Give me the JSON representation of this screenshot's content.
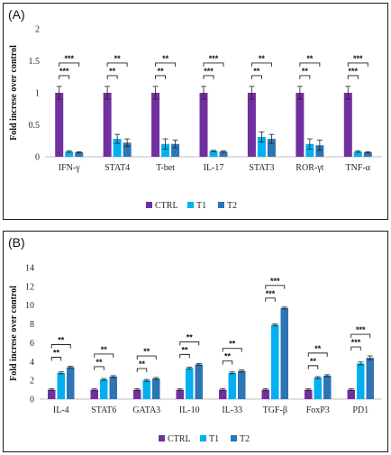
{
  "chart_data": [
    {
      "type": "bar",
      "panel_label": "(A)",
      "ylabel": "Fold increse over control",
      "ylim": [
        0,
        2
      ],
      "yticks": [
        "0",
        "0.5",
        "1",
        "1.5",
        "2"
      ],
      "grid": false,
      "legend_position": "bottom",
      "categories": [
        "IFN-γ",
        "STAT4",
        "T-bet",
        "IL-17",
        "STAT3",
        "ROR-γt",
        "TNF-α"
      ],
      "series": [
        {
          "name": "CTRL",
          "color": "#7030a0",
          "values": [
            1,
            1,
            1,
            1,
            1,
            1,
            1
          ],
          "errors": [
            0.1,
            0.1,
            0.1,
            0.1,
            0.1,
            0.1,
            0.1
          ]
        },
        {
          "name": "T1",
          "color": "#00b0f0",
          "values": [
            0.08,
            0.28,
            0.2,
            0.09,
            0.31,
            0.2,
            0.08
          ],
          "errors": [
            0.01,
            0.07,
            0.08,
            0.01,
            0.08,
            0.08,
            0.01
          ]
        },
        {
          "name": "T2",
          "color": "#2e75b6",
          "values": [
            0.07,
            0.22,
            0.2,
            0.08,
            0.28,
            0.18,
            0.07
          ],
          "errors": [
            0.01,
            0.06,
            0.06,
            0.01,
            0.07,
            0.08,
            0.01
          ]
        }
      ],
      "significance": [
        {
          "t1": "***",
          "t2": "***"
        },
        {
          "t1": "**",
          "t2": "**"
        },
        {
          "t1": "**",
          "t2": "**"
        },
        {
          "t1": "***",
          "t2": "***"
        },
        {
          "t1": "**",
          "t2": "**"
        },
        {
          "t1": "**",
          "t2": "**"
        },
        {
          "t1": "***",
          "t2": "***"
        }
      ]
    },
    {
      "type": "bar",
      "panel_label": "(B)",
      "ylabel": "Fold increse over control",
      "ylim": [
        0,
        14
      ],
      "yticks": [
        "0",
        "2",
        "4",
        "6",
        "8",
        "10",
        "12",
        "14"
      ],
      "grid": false,
      "legend_position": "bottom",
      "categories": [
        "IL-4",
        "STAT6",
        "GATA3",
        "IL-10",
        "IL-33",
        "TGF-β",
        "FoxP3",
        "PD1"
      ],
      "series": [
        {
          "name": "CTRL",
          "color": "#7030a0",
          "values": [
            1,
            1,
            1,
            1,
            1,
            1,
            1,
            1
          ],
          "errors": [
            0.1,
            0.1,
            0.1,
            0.1,
            0.1,
            0.1,
            0.1,
            0.1
          ]
        },
        {
          "name": "T1",
          "color": "#00b0f0",
          "values": [
            2.8,
            2.1,
            2.0,
            3.3,
            2.8,
            7.9,
            2.3,
            3.8
          ],
          "errors": [
            0.1,
            0.1,
            0.1,
            0.1,
            0.1,
            0.1,
            0.1,
            0.15
          ]
        },
        {
          "name": "T2",
          "color": "#2e75b6",
          "values": [
            3.4,
            2.4,
            2.2,
            3.7,
            3.0,
            9.7,
            2.5,
            4.4
          ],
          "errors": [
            0.1,
            0.1,
            0.1,
            0.1,
            0.1,
            0.1,
            0.1,
            0.2
          ]
        }
      ],
      "significance": [
        {
          "t1": "**",
          "t2": "**"
        },
        {
          "t1": "**",
          "t2": "**"
        },
        {
          "t1": "**",
          "t2": "**"
        },
        {
          "t1": "**",
          "t2": "**"
        },
        {
          "t1": "**",
          "t2": "**"
        },
        {
          "t1": "***",
          "t2": "***"
        },
        {
          "t1": "**",
          "t2": "**"
        },
        {
          "t1": "***",
          "t2": "***"
        }
      ]
    }
  ]
}
